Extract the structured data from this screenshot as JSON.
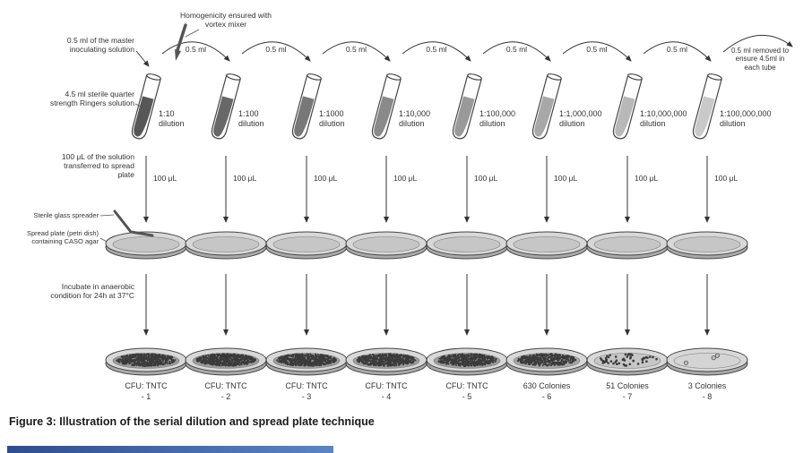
{
  "title": "Serial dilution and spread plate technique diagram",
  "colors": {
    "ink": "#333333",
    "accent_bar": "#2e4d8f"
  },
  "notes": {
    "vortex": "Homogenicity ensured with vortex mixer",
    "master": "0.5 ml of the master inoculating solution",
    "ringers": "4.5 ml sterile quarter strength Ringers solution",
    "transfer": "100 μL of the solution transferred to spread plate",
    "spreader": "Sterile glass spreader",
    "spread_plate": "Spread plate (petri dish) containing CASO agar",
    "incubate": "Incubate in anaerobic condition for 24h at 37°C",
    "removal": "0.5 ml removed to ensure 4.5ml in each tube"
  },
  "volumes": {
    "between_tubes": "0.5 ml",
    "to_plate": "100 μL"
  },
  "strings": {
    "dilution_word": "dilution"
  },
  "columns": [
    {
      "dilution": "1:10",
      "result_line1": "CFU: TNTC",
      "result_line2": "- 1",
      "tube_fill": "#575757",
      "colony_dots": 600,
      "agar_fill": "#9c9c9c"
    },
    {
      "dilution": "1:100",
      "result_line1": "CFU: TNTC",
      "result_line2": "- 2",
      "tube_fill": "#686868",
      "colony_dots": 600,
      "agar_fill": "#9c9c9c"
    },
    {
      "dilution": "1:1000",
      "result_line1": "CFU: TNTC",
      "result_line2": "- 3",
      "tube_fill": "#787878",
      "colony_dots": 600,
      "agar_fill": "#9c9c9c"
    },
    {
      "dilution": "1:10,000",
      "result_line1": "CFU: TNTC",
      "result_line2": "- 4",
      "tube_fill": "#8a8a8a",
      "colony_dots": 600,
      "agar_fill": "#9c9c9c"
    },
    {
      "dilution": "1:100,000",
      "result_line1": "CFU: TNTC",
      "result_line2": "- 5",
      "tube_fill": "#999999",
      "colony_dots": 600,
      "agar_fill": "#9c9c9c"
    },
    {
      "dilution": "1:1,000,000",
      "result_line1": "630 Colonies",
      "result_line2": "- 6",
      "tube_fill": "#a8a8a8",
      "colony_dots": 480,
      "agar_fill": "#a6a6a6"
    },
    {
      "dilution": "1:10,000,000",
      "result_line1": "51 Colonies",
      "result_line2": "- 7",
      "tube_fill": "#b8b8b8",
      "colony_dots": 51,
      "agar_fill": "#c6c6c6"
    },
    {
      "dilution": "1:100,000,000",
      "result_line1": "3 Colonies",
      "result_line2": "- 8",
      "tube_fill": "#c9c9c9",
      "colony_dots": 3,
      "agar_fill": "#d4d4d4"
    }
  ],
  "caption": "Figure 3: Illustration of the serial dilution and spread plate technique"
}
